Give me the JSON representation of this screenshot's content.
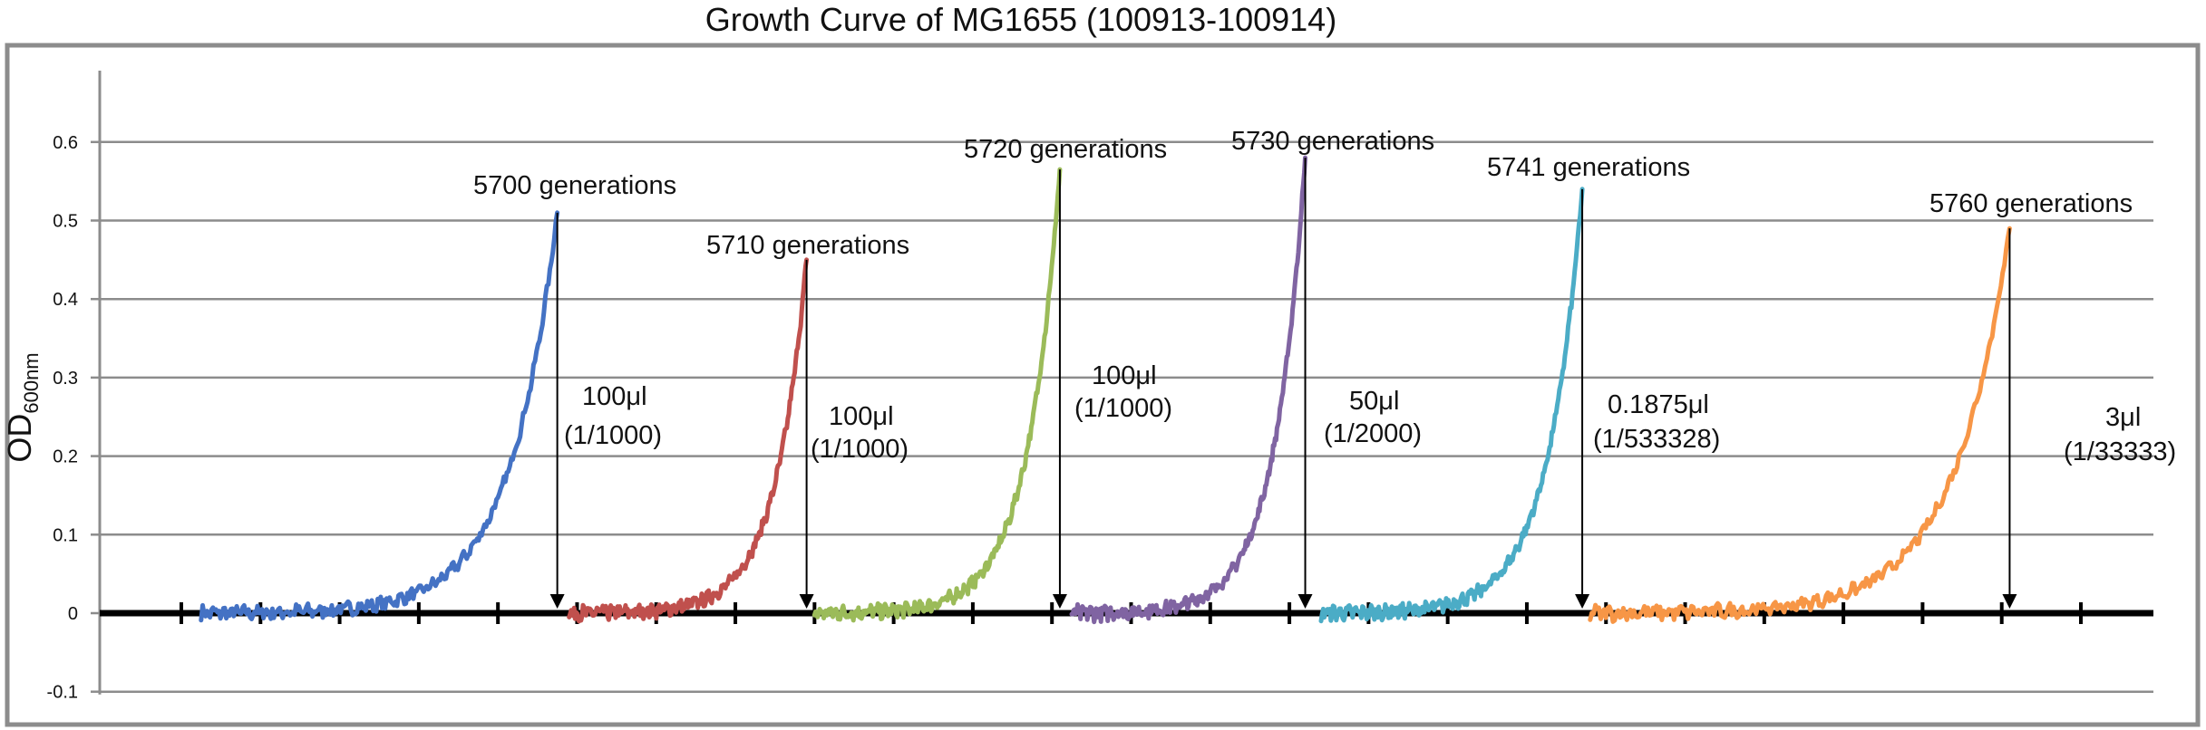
{
  "chart_data": {
    "type": "line",
    "title": "Growth Curve of MG1655 (100913-100914)",
    "ylabel": "OD",
    "ylabel_subscript": "600nm",
    "xlabel": "",
    "ylim": [
      -0.1,
      0.7
    ],
    "yticks": [
      -0.1,
      0,
      0.1,
      0.2,
      0.3,
      0.4,
      0.5,
      0.6
    ],
    "ytick_labels": [
      "-0.1",
      "0",
      "0.1",
      "0.2",
      "0.3",
      "0.4",
      "0.5",
      "0.6"
    ],
    "grid": true,
    "legend": false,
    "xlim": [
      0,
      24
    ],
    "xticks_count": 25,
    "series": [
      {
        "color": "#4472C4",
        "x_start": 0.25,
        "x_end": 4.75,
        "peak": 0.51
      },
      {
        "color": "#C0504D",
        "x_start": 4.9,
        "x_end": 7.9,
        "peak": 0.45
      },
      {
        "color": "#9BBB59",
        "x_start": 8.0,
        "x_end": 11.1,
        "peak": 0.565
      },
      {
        "color": "#8064A2",
        "x_start": 11.25,
        "x_end": 14.2,
        "peak": 0.58
      },
      {
        "color": "#4BACC6",
        "x_start": 14.4,
        "x_end": 17.7,
        "peak": 0.54
      },
      {
        "color": "#F79646",
        "x_start": 17.8,
        "x_end": 23.1,
        "peak": 0.49
      }
    ],
    "annotations": [
      {
        "label": "5700 generations",
        "dilution_volume": "100μl",
        "dilution_ratio": "(1/1000)",
        "x": 4.75
      },
      {
        "label": "5710 generations",
        "dilution_volume": "100μl",
        "dilution_ratio": "(1/1000)",
        "x": 7.9
      },
      {
        "label": "5720 generations",
        "dilution_volume": "100μl",
        "dilution_ratio": "(1/1000)",
        "x": 11.1
      },
      {
        "label": "5730 generations",
        "dilution_volume": "50μl",
        "dilution_ratio": "(1/2000)",
        "x": 14.2
      },
      {
        "label": "5741 generations",
        "dilution_volume": "0.1875μl",
        "dilution_ratio": "(1/533328)",
        "x": 17.7
      },
      {
        "label": "5760 generations",
        "dilution_volume": "3μl",
        "dilution_ratio": "(1/33333)",
        "x": 23.1
      }
    ]
  }
}
